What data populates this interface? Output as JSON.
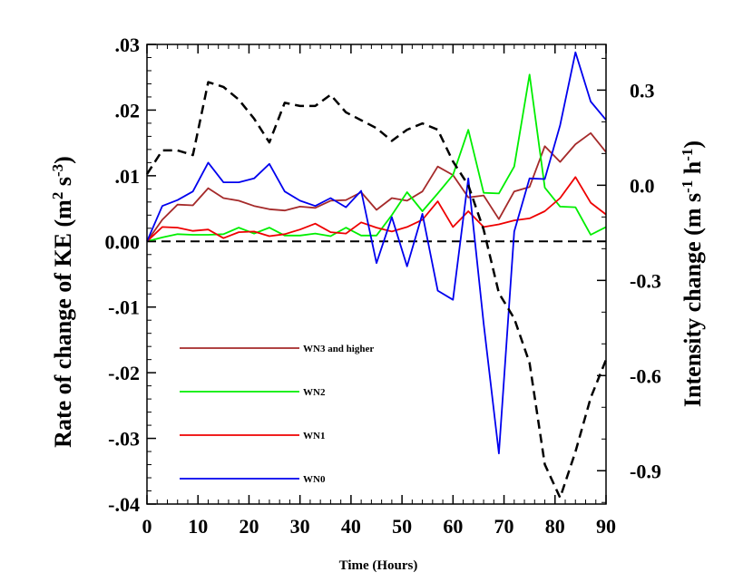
{
  "chart_data": {
    "type": "line",
    "xlabel": "Time (Hours)",
    "ylabel_left": {
      "main": "Rate of change of KE (m",
      "sup1": "2",
      "mid": " s",
      "sup2": "-3",
      "end": ")"
    },
    "ylabel_right": {
      "main": "Intensity change (m s",
      "sup1": "-1",
      "mid": " h",
      "sup2": "-1",
      "end": ")"
    },
    "xlim": [
      0,
      90
    ],
    "ylim_left": [
      -0.04,
      0.03
    ],
    "ylim_right": [
      -1.005,
      0.444
    ],
    "x_ticks": [
      "0",
      "10",
      "20",
      "30",
      "40",
      "50",
      "60",
      "70",
      "80",
      "90"
    ],
    "x_tick_values": [
      0,
      10,
      20,
      30,
      40,
      50,
      60,
      70,
      80,
      90
    ],
    "left_ticks": [
      ".03",
      ".02",
      ".01",
      "0.00",
      "-.01",
      "-.02",
      "-.03",
      "-.04"
    ],
    "left_tick_values": [
      0.03,
      0.02,
      0.01,
      0.0,
      -0.01,
      -0.02,
      -0.03,
      -0.04
    ],
    "right_ticks": [
      "0.3",
      "0.0",
      "-0.3",
      "-0.6",
      "-0.9"
    ],
    "right_tick_values": [
      0.3,
      0.0,
      -0.3,
      -0.6,
      -0.9
    ],
    "zero_line": {
      "value": 0,
      "style": "dashed",
      "color": "#000000"
    },
    "series": [
      {
        "name": "WN3 and higher",
        "color": "#A52A2A",
        "axis": "left",
        "x": [
          0,
          3,
          6,
          9,
          12,
          15,
          18,
          21,
          24,
          27,
          30,
          33,
          36,
          39,
          42,
          45,
          48,
          51,
          54,
          57,
          60,
          63,
          66,
          69,
          72,
          75,
          78,
          81,
          84,
          87,
          90
        ],
        "y": [
          0.0,
          0.0033,
          0.0056,
          0.0055,
          0.0081,
          0.0066,
          0.0062,
          0.0054,
          0.0049,
          0.0047,
          0.0053,
          0.0051,
          0.0062,
          0.0063,
          0.0075,
          0.0048,
          0.0066,
          0.0062,
          0.0076,
          0.0114,
          0.0101,
          0.0067,
          0.007,
          0.0034,
          0.0076,
          0.0083,
          0.0145,
          0.0121,
          0.0148,
          0.0165,
          0.0136
        ]
      },
      {
        "name": "WN2",
        "color": "#00EE00",
        "axis": "left",
        "x": [
          0,
          3,
          6,
          9,
          12,
          15,
          18,
          21,
          24,
          27,
          30,
          33,
          36,
          39,
          42,
          45,
          48,
          51,
          54,
          57,
          60,
          63,
          66,
          69,
          72,
          75,
          78,
          81,
          84,
          87,
          90
        ],
        "y": [
          0.0,
          0.0006,
          0.0011,
          0.001,
          0.001,
          0.0011,
          0.0021,
          0.0012,
          0.0021,
          0.0009,
          0.0009,
          0.0012,
          0.0008,
          0.0021,
          0.0009,
          0.0009,
          0.004,
          0.0075,
          0.0046,
          0.0073,
          0.0101,
          0.017,
          0.0074,
          0.0073,
          0.0114,
          0.0254,
          0.0082,
          0.0053,
          0.0052,
          0.001,
          0.0022
        ]
      },
      {
        "name": "WN1",
        "color": "#EE0000",
        "axis": "left",
        "x": [
          0,
          3,
          6,
          9,
          12,
          15,
          18,
          21,
          24,
          27,
          30,
          33,
          36,
          39,
          42,
          45,
          48,
          51,
          54,
          57,
          60,
          63,
          66,
          69,
          72,
          75,
          78,
          81,
          84,
          87,
          90
        ],
        "y": [
          0.0,
          0.0022,
          0.0021,
          0.0016,
          0.0018,
          0.0005,
          0.0014,
          0.0015,
          0.0008,
          0.0011,
          0.0018,
          0.0027,
          0.0014,
          0.0012,
          0.0029,
          0.0021,
          0.0015,
          0.0022,
          0.0033,
          0.0061,
          0.0022,
          0.0046,
          0.0022,
          0.0026,
          0.0032,
          0.0035,
          0.0046,
          0.0066,
          0.0098,
          0.0059,
          0.0041
        ]
      },
      {
        "name": "WN0",
        "color": "#0000EE",
        "axis": "left",
        "x": [
          0,
          3,
          6,
          9,
          12,
          15,
          18,
          21,
          24,
          27,
          30,
          33,
          36,
          39,
          42,
          45,
          48,
          51,
          54,
          57,
          60,
          63,
          66,
          69,
          72,
          75,
          78,
          81,
          84,
          87,
          90
        ],
        "y": [
          0.0,
          0.0054,
          0.0063,
          0.0076,
          0.012,
          0.009,
          0.009,
          0.0096,
          0.0118,
          0.0076,
          0.0062,
          0.0054,
          0.0066,
          0.0052,
          0.0077,
          -0.0033,
          0.0037,
          -0.0038,
          0.0042,
          -0.0075,
          -0.0089,
          0.0096,
          -0.0125,
          -0.0323,
          0.0015,
          0.0096,
          0.0095,
          0.0177,
          0.0288,
          0.0213,
          0.0185
        ]
      },
      {
        "name": "",
        "color": "#000000",
        "axis": "right",
        "dashed": true,
        "x": [
          0,
          3,
          6,
          9,
          12,
          15,
          18,
          21,
          24,
          27,
          30,
          33,
          36,
          39,
          42,
          45,
          48,
          51,
          54,
          57,
          60,
          63,
          66,
          69,
          72,
          75,
          78,
          81,
          84,
          87,
          90
        ],
        "y": [
          0.035,
          0.11,
          0.11,
          0.095,
          0.325,
          0.31,
          0.27,
          0.21,
          0.135,
          0.26,
          0.25,
          0.25,
          0.285,
          0.23,
          0.205,
          0.18,
          0.14,
          0.175,
          0.195,
          0.175,
          0.075,
          0.0,
          -0.14,
          -0.34,
          -0.42,
          -0.56,
          -0.88,
          -0.985,
          -0.84,
          -0.67,
          -0.55
        ]
      }
    ],
    "legend": {
      "placement": "lower-left",
      "entries": [
        "WN3 and higher",
        "WN2",
        "WN1",
        "WN0"
      ],
      "colors": [
        "#A52A2A",
        "#00EE00",
        "#EE0000",
        "#0000EE"
      ]
    }
  }
}
